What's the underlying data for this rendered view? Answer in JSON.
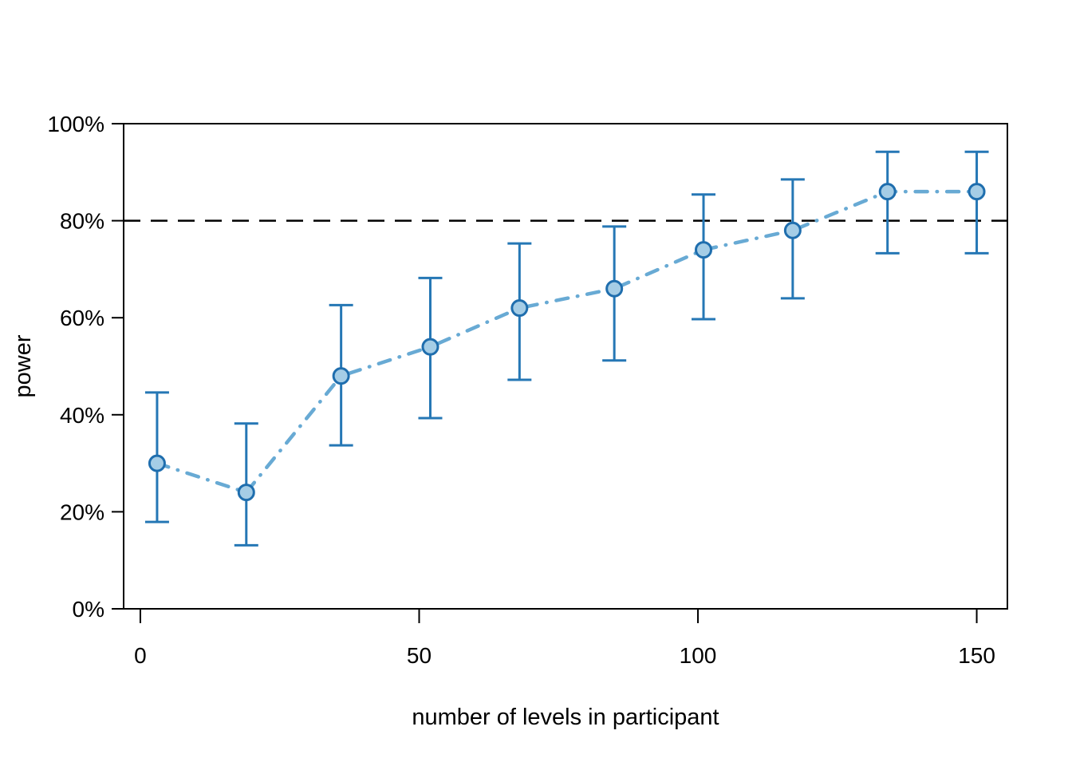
{
  "chart_data": {
    "type": "line",
    "title": "",
    "xlabel": "number of levels in participant",
    "ylabel": "power",
    "x": [
      3,
      19,
      36,
      52,
      68,
      85,
      101,
      117,
      134,
      150
    ],
    "series": [
      {
        "name": "power",
        "values": [
          30,
          24,
          48,
          54,
          62,
          66,
          74,
          78,
          86,
          86
        ]
      }
    ],
    "ci_low": [
      17.9,
      13.1,
      33.7,
      39.3,
      47.2,
      51.2,
      59.7,
      64.0,
      73.3,
      73.3
    ],
    "ci_high": [
      44.6,
      38.2,
      62.6,
      68.2,
      75.3,
      78.8,
      85.4,
      88.5,
      94.2,
      94.2
    ],
    "threshold_value": 80,
    "x_ticks": [
      0,
      50,
      100,
      150
    ],
    "x_tick_labels": [
      "0",
      "50",
      "100",
      "150"
    ],
    "y_ticks": [
      0,
      20,
      40,
      60,
      80,
      100
    ],
    "y_tick_labels": [
      "0%",
      "20%",
      "40%",
      "60%",
      "80%",
      "100%"
    ],
    "xlim": [
      -3,
      155.5
    ],
    "ylim": [
      0,
      100
    ],
    "grid": false,
    "legend": "none",
    "line_style": "dotdash",
    "marker": "circle",
    "colors": {
      "series_line": "#68AAD4",
      "error_bar": "#2577B5",
      "marker_fill": "#A5CDE6",
      "marker_stroke": "#1F6EAE",
      "threshold_line": "#000000",
      "axis": "#000000"
    }
  }
}
